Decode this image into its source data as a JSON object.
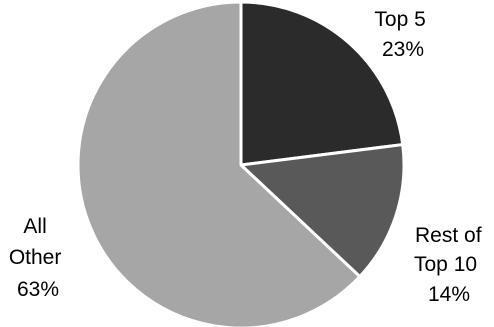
{
  "chart_data": {
    "type": "pie",
    "title": "",
    "slices": [
      {
        "name": "Top 5",
        "value": 23,
        "label": "23%",
        "color": "#2b2b2b",
        "label_lines": [
          "Top 5",
          "23%"
        ]
      },
      {
        "name": "Rest of Top 10",
        "value": 14,
        "label": "14%",
        "color": "#595959",
        "label_lines": [
          "Rest of",
          "Top 10",
          "14%"
        ]
      },
      {
        "name": "All Other",
        "value": 63,
        "label": "63%",
        "color": "#a6a6a6",
        "label_lines": [
          "All",
          "Other",
          "63%"
        ]
      }
    ],
    "start_angle_deg": 0,
    "direction": "clockwise",
    "legend": "none"
  }
}
